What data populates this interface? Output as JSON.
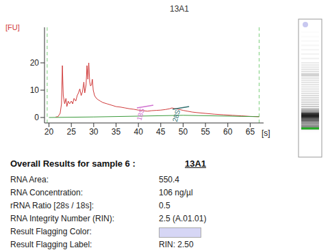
{
  "chart_data": {
    "type": "line",
    "title": "13A1",
    "x_label": "[s]",
    "y_label": "[FU]",
    "xlim": [
      19,
      68
    ],
    "xticks": [
      20,
      25,
      30,
      35,
      40,
      45,
      50,
      55,
      60,
      65
    ],
    "ylim": [
      -2,
      33
    ],
    "yticks": [
      0,
      10,
      20
    ],
    "grid": false,
    "series": [
      {
        "color": "#d03a3a",
        "x": [
          21.5,
          22,
          22.5,
          22.8,
          23.0,
          23.2,
          23.5,
          23.8,
          24.0,
          24.3,
          24.6,
          25.0,
          25.3,
          25.6,
          26.0,
          26.3,
          26.6,
          26.9,
          27.2,
          27.5,
          27.8,
          28.0,
          28.3,
          28.5,
          28.7,
          28.9,
          29.1,
          29.3,
          29.5,
          29.7,
          29.9,
          30.2,
          30.6,
          31.0,
          31.5,
          32,
          33,
          34,
          35,
          36,
          37,
          38,
          39,
          40,
          41,
          42,
          43,
          44,
          45,
          46,
          47,
          47.5,
          48,
          49,
          50,
          51,
          52,
          53,
          55,
          57,
          59,
          61,
          63,
          65,
          67
        ],
        "values": [
          0.2,
          0.3,
          1.5,
          5,
          19,
          8,
          5,
          7,
          4,
          6,
          5,
          6,
          5,
          7,
          6,
          8,
          9,
          10.5,
          8,
          9.5,
          13,
          9,
          12,
          19,
          14,
          20,
          13,
          11.5,
          12,
          14,
          10,
          8,
          7,
          6.5,
          6,
          5.5,
          5,
          4.5,
          4,
          3.8,
          3.5,
          3.2,
          3,
          2.7,
          2.5,
          2.3,
          2.5,
          2.6,
          2.7,
          2.9,
          3.2,
          3.5,
          3.3,
          3,
          2.6,
          2.3,
          2,
          1.8,
          1.5,
          1.2,
          1,
          0.8,
          0.6,
          0.4,
          0.3
        ]
      },
      {
        "color": "#3a9a3a",
        "x": [
          20,
          30,
          40,
          50,
          67
        ],
        "values": [
          0,
          0.2,
          0.5,
          0.8,
          0.3
        ]
      }
    ],
    "markers": [
      19.6,
      67
    ],
    "lower_marker": 23.0,
    "annotations": [
      {
        "text": "18S",
        "x": 41.5,
        "y": 4,
        "color": "#d070d0"
      },
      {
        "text": "28S",
        "x": 49.5,
        "y": 3.5,
        "color": "#2f6f6f"
      }
    ]
  },
  "results": {
    "heading": "Overall Results for sample 6 :",
    "sample": "13A1",
    "rows": [
      {
        "label": "RNA Area:",
        "value": "550.4"
      },
      {
        "label": "RNA Concentration:",
        "value": "106 ng/µl"
      },
      {
        "label": "rRNA Ratio [28s / 18s]:",
        "value": "0.5"
      },
      {
        "label": "RNA Integrity Number (RIN):",
        "value": "2.5 (A.01.01)"
      },
      {
        "label": "Result Flagging Color:",
        "color": "#d6d6f5"
      },
      {
        "label": "Result Flagging Label:",
        "value": "RIN: 2.50"
      }
    ]
  }
}
